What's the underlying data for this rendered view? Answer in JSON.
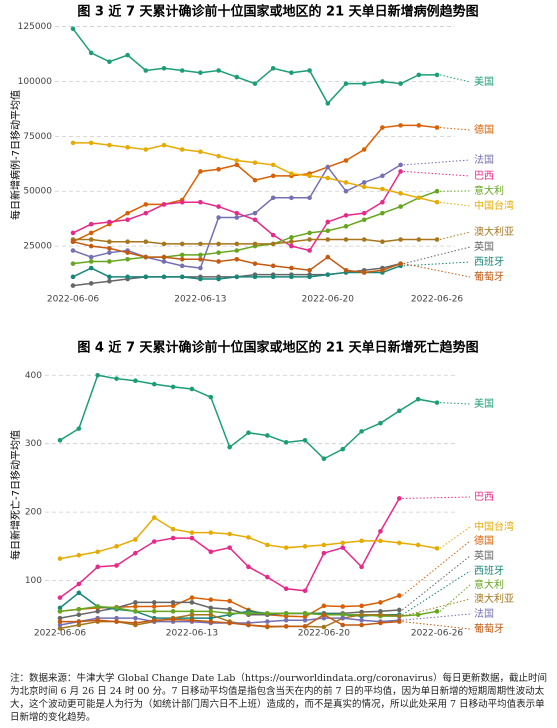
{
  "chart_data": [
    {
      "type": "line",
      "title": "图 3 近 7 天累计确诊前十位国家或地区的 21 天单日新增病例趋势图",
      "ylabel": "每日新增病例-7日移动平均值",
      "x": [
        "2022-06-06",
        "2022-06-07",
        "2022-06-08",
        "2022-06-09",
        "2022-06-10",
        "2022-06-11",
        "2022-06-12",
        "2022-06-13",
        "2022-06-14",
        "2022-06-15",
        "2022-06-16",
        "2022-06-17",
        "2022-06-18",
        "2022-06-19",
        "2022-06-20",
        "2022-06-21",
        "2022-06-22",
        "2022-06-23",
        "2022-06-24",
        "2022-06-25",
        "2022-06-26"
      ],
      "xticks": [
        "2022-06-06",
        "2022-06-13",
        "2022-06-20",
        "2022-06-26"
      ],
      "ylim": [
        5000,
        128000
      ],
      "yticks": [
        25000,
        50000,
        75000,
        100000,
        125000
      ],
      "grid": true,
      "series": [
        {
          "name": "美国",
          "color": "#1b9e77",
          "values": [
            124000,
            113000,
            109000,
            112000,
            105000,
            106000,
            105000,
            104000,
            105000,
            102000,
            99000,
            106000,
            104000,
            105000,
            90000,
            99000,
            99000,
            100000,
            99000,
            103000,
            103000
          ]
        },
        {
          "name": "德国",
          "color": "#d95f02",
          "values": [
            27000,
            31000,
            35000,
            40000,
            44000,
            44000,
            46000,
            59000,
            60000,
            62000,
            55000,
            57000,
            57000,
            58000,
            61000,
            64000,
            69000,
            79000,
            80000,
            80000,
            79000
          ]
        },
        {
          "name": "法国",
          "color": "#7570b3",
          "values": [
            23000,
            20000,
            22000,
            23000,
            20000,
            18000,
            16000,
            15000,
            38000,
            38000,
            40000,
            47000,
            47000,
            47000,
            61000,
            50000,
            54000,
            57000,
            62000,
            null,
            null
          ]
        },
        {
          "name": "巴西",
          "color": "#e7298a",
          "values": [
            31000,
            35000,
            36000,
            37000,
            40000,
            44000,
            45000,
            45000,
            43000,
            40000,
            37000,
            30000,
            25000,
            23000,
            36000,
            39000,
            40000,
            45000,
            59000,
            null,
            null
          ]
        },
        {
          "name": "意大利",
          "color": "#66a61e",
          "values": [
            17000,
            18000,
            18000,
            19000,
            20000,
            20000,
            21000,
            21000,
            22000,
            23000,
            25000,
            26000,
            29000,
            31000,
            32000,
            34000,
            37000,
            40000,
            43000,
            47000,
            50000
          ]
        },
        {
          "name": "中国台湾",
          "color": "#e6ab02",
          "values": [
            72000,
            72000,
            71000,
            70000,
            69000,
            71000,
            69000,
            68000,
            66000,
            64000,
            63000,
            62000,
            58000,
            57000,
            56000,
            54000,
            52000,
            51000,
            49000,
            47000,
            45000
          ]
        },
        {
          "name": "澳大利亚",
          "color": "#a6761d",
          "values": [
            28000,
            28000,
            27000,
            27000,
            27000,
            26000,
            26000,
            26000,
            26000,
            26000,
            26000,
            26000,
            27000,
            28000,
            28000,
            28000,
            28000,
            27000,
            28000,
            28000,
            28000
          ]
        },
        {
          "name": "英国",
          "color": "#666666",
          "values": [
            7000,
            8000,
            9000,
            10000,
            11000,
            11000,
            11000,
            11000,
            11000,
            11000,
            12000,
            12000,
            12000,
            12000,
            12000,
            13000,
            14000,
            15000,
            17000,
            null,
            null
          ]
        },
        {
          "name": "西班牙",
          "color": "#17877a",
          "values": [
            11000,
            15000,
            11000,
            11000,
            11000,
            11000,
            11000,
            10000,
            10000,
            11000,
            11000,
            11000,
            11000,
            11000,
            12000,
            13000,
            13000,
            13000,
            16000,
            null,
            null
          ]
        },
        {
          "name": "葡萄牙",
          "color": "#c45a10",
          "values": [
            27000,
            25000,
            24000,
            22000,
            20000,
            20000,
            19000,
            19000,
            18000,
            19000,
            17000,
            16000,
            15000,
            14000,
            20000,
            14000,
            13000,
            14000,
            17000,
            null,
            null
          ]
        }
      ]
    },
    {
      "type": "line",
      "title": "图 4 近 7 天累计确诊前十位国家或地区的 21 天单日新增死亡趋势图",
      "ylabel": "每日新增死亡-7日移动平均值",
      "x": [
        "2022-06-06",
        "2022-06-07",
        "2022-06-08",
        "2022-06-09",
        "2022-06-10",
        "2022-06-11",
        "2022-06-12",
        "2022-06-13",
        "2022-06-14",
        "2022-06-15",
        "2022-06-16",
        "2022-06-17",
        "2022-06-18",
        "2022-06-19",
        "2022-06-20",
        "2022-06-21",
        "2022-06-22",
        "2022-06-23",
        "2022-06-24",
        "2022-06-25",
        "2022-06-26"
      ],
      "xticks": [
        "2022-06-06",
        "2022-06-13",
        "2022-06-20",
        "2022-06-26"
      ],
      "ylim": [
        35,
        415
      ],
      "yticks": [
        100,
        200,
        300,
        400
      ],
      "grid": true,
      "series": [
        {
          "name": "美国",
          "color": "#1b9e77",
          "values": [
            305,
            322,
            400,
            395,
            392,
            387,
            383,
            380,
            368,
            295,
            316,
            312,
            302,
            305,
            278,
            292,
            318,
            330,
            348,
            365,
            360
          ]
        },
        {
          "name": "巴西",
          "color": "#e7298a",
          "values": [
            75,
            95,
            120,
            122,
            140,
            157,
            162,
            162,
            142,
            148,
            120,
            105,
            88,
            85,
            140,
            148,
            120,
            172,
            220,
            null,
            null
          ]
        },
        {
          "name": "中国台湾",
          "color": "#e6ab02",
          "values": [
            132,
            137,
            142,
            150,
            160,
            192,
            175,
            170,
            170,
            168,
            163,
            152,
            148,
            150,
            152,
            155,
            158,
            158,
            155,
            152,
            147
          ]
        },
        {
          "name": "德国",
          "color": "#d95f02",
          "values": [
            55,
            58,
            60,
            61,
            62,
            62,
            63,
            75,
            72,
            70,
            57,
            50,
            48,
            47,
            63,
            62,
            63,
            68,
            78,
            null,
            null
          ]
        },
        {
          "name": "英国",
          "color": "#666666",
          "values": [
            45,
            50,
            55,
            60,
            68,
            68,
            68,
            68,
            60,
            58,
            50,
            50,
            52,
            52,
            52,
            52,
            54,
            55,
            57,
            null,
            null
          ]
        },
        {
          "name": "西班牙",
          "color": "#17877a",
          "values": [
            60,
            82,
            62,
            58,
            55,
            45,
            45,
            45,
            45,
            50,
            55,
            52,
            52,
            52,
            52,
            50,
            48,
            50,
            50,
            null,
            null
          ]
        },
        {
          "name": "意大利",
          "color": "#66a61e",
          "values": [
            55,
            58,
            62,
            60,
            55,
            55,
            55,
            55,
            55,
            52,
            52,
            52,
            52,
            52,
            50,
            50,
            50,
            48,
            48,
            50,
            55
          ]
        },
        {
          "name": "澳大利亚",
          "color": "#a6761d",
          "values": [
            30,
            35,
            40,
            40,
            35,
            40,
            45,
            50,
            50,
            40,
            35,
            32,
            33,
            33,
            32,
            45,
            50,
            50,
            48,
            null,
            null
          ]
        },
        {
          "name": "法国",
          "color": "#7570b3",
          "values": [
            35,
            40,
            45,
            45,
            45,
            40,
            40,
            40,
            38,
            38,
            38,
            40,
            42,
            42,
            45,
            45,
            42,
            40,
            42,
            null,
            null
          ]
        },
        {
          "name": "葡萄牙",
          "color": "#c45a10",
          "values": [
            40,
            40,
            42,
            40,
            38,
            42,
            43,
            42,
            40,
            38,
            35,
            33,
            33,
            33,
            50,
            35,
            35,
            38,
            40,
            null,
            null
          ]
        }
      ]
    }
  ],
  "note": "注：数据来源：牛津大学 Global Change Date Lab（https://ourworldindata.org/coronavirus）每日更新数据，截止时间为北京时间 6 月 26 日 24 时 00 分。7 日移动平均值是指包含当天在内的前 7 日的平均值，因为单日新增的短期周期性波动太大，这个波动更可能是人为行为（如统计部门周六日不上班）造成的，而不是真实的情况，所以此处采用 7 日移动平均值表示单日新增的变化趋势。"
}
